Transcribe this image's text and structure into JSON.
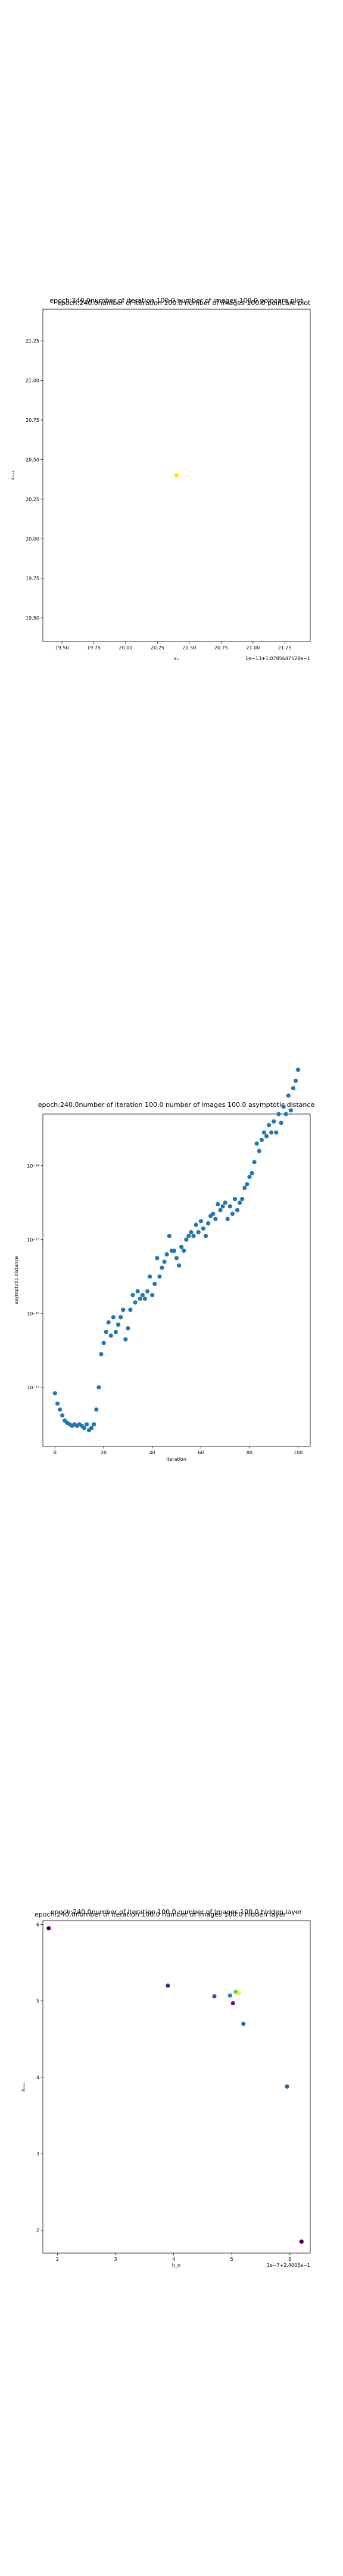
{
  "chart_data": [
    {
      "type": "scatter",
      "title": "epoch:240.0number of iteration 100.0 number of images 100.0 poincare plot",
      "overlay_title": "epoch:240.0number of iteration 100.0 number of images 100.0 poincare plot",
      "xlabel": "xₙ",
      "ylabel": "xₙ₊₁",
      "x_offset_text": "1e−13+1.0785647528e−1",
      "xlim": [
        19.35,
        21.45
      ],
      "ylim": [
        19.35,
        21.45
      ],
      "xticks": [
        "19.50",
        "19.75",
        "20.00",
        "20.25",
        "20.50",
        "20.75",
        "21.00",
        "21.25"
      ],
      "yticks": [
        "19.50",
        "19.75",
        "20.00",
        "20.25",
        "20.50",
        "20.75",
        "21.00",
        "21.25"
      ],
      "points": [
        {
          "x": 20.4,
          "y": 20.4,
          "color": "#fde725"
        }
      ]
    },
    {
      "type": "scatter",
      "title": "epoch:240.0number of iteration 100.0  number of images 100.0 asymptotic distance",
      "xlabel": "iteration",
      "ylabel": "asymptotic distance",
      "yscale": "log",
      "xlim": [
        -5,
        105
      ],
      "ylim_exp": [
        -17.8,
        -13.3
      ],
      "xticks": [
        "0",
        "20",
        "40",
        "60",
        "80",
        "100"
      ],
      "yticks": [
        "10⁻¹⁷",
        "10⁻¹⁶",
        "10⁻¹⁵",
        "10⁻¹⁴"
      ],
      "color": "#1f77b4",
      "x": [
        0,
        1,
        2,
        3,
        4,
        5,
        6,
        7,
        8,
        9,
        10,
        11,
        12,
        13,
        14,
        15,
        16,
        17,
        18,
        19,
        20,
        21,
        22,
        23,
        24,
        25,
        26,
        27,
        28,
        29,
        30,
        31,
        32,
        33,
        34,
        35,
        36,
        37,
        38,
        39,
        40,
        41,
        42,
        43,
        44,
        45,
        46,
        47,
        48,
        49,
        50,
        51,
        52,
        53,
        54,
        55,
        56,
        57,
        58,
        59,
        60,
        61,
        62,
        63,
        64,
        65,
        66,
        67,
        68,
        69,
        70,
        71,
        72,
        73,
        74,
        75,
        76,
        77,
        78,
        79,
        80,
        81,
        82,
        83,
        84,
        85,
        86,
        87,
        88,
        89,
        90,
        91,
        92,
        93,
        94,
        95,
        96,
        97,
        98,
        99,
        100
      ],
      "y_log10": [
        -17.08,
        -17.22,
        -17.3,
        -17.38,
        -17.45,
        -17.48,
        -17.5,
        -17.52,
        -17.5,
        -17.52,
        -17.5,
        -17.52,
        -17.55,
        -17.5,
        -17.58,
        -17.55,
        -17.5,
        -17.3,
        -17.0,
        -16.55,
        -16.4,
        -16.25,
        -16.12,
        -16.3,
        -16.05,
        -16.25,
        -16.15,
        -16.05,
        -15.95,
        -16.35,
        -16.2,
        -15.95,
        -15.75,
        -15.85,
        -15.7,
        -15.8,
        -15.75,
        -15.8,
        -15.7,
        -15.5,
        -15.75,
        -15.6,
        -15.25,
        -15.5,
        -15.38,
        -15.3,
        -15.2,
        -14.95,
        -15.15,
        -15.15,
        -15.25,
        -15.35,
        -15.1,
        -15.15,
        -15.0,
        -14.95,
        -14.9,
        -14.95,
        -14.8,
        -14.9,
        -14.75,
        -14.85,
        -14.95,
        -14.78,
        -14.68,
        -14.65,
        -14.72,
        -14.52,
        -14.6,
        -14.55,
        -14.5,
        -14.72,
        -14.55,
        -14.65,
        -14.45,
        -14.6,
        -14.5,
        -14.45,
        -14.3,
        -14.25,
        -14.15,
        -14.1,
        -13.95,
        -13.7,
        -13.8,
        -13.65,
        -13.55,
        -13.6,
        -13.45,
        -13.55,
        -13.4,
        -13.55,
        -13.3,
        -13.42,
        -13.2,
        -13.3,
        -13.05,
        -13.25,
        -12.95,
        -12.85,
        -12.7
      ]
    },
    {
      "type": "scatter",
      "title": "epoch:240.0number of iteration 100.0  number of images 100.0 hidden layer",
      "overlay_title": "epoch:240.0number of iteration 100.0  number of images 100.0 hidden layer",
      "xlabel": "h_n",
      "ylabel": "hₙ₊₁",
      "x_offset_text": "1e−7+2.4005e−1",
      "xlim": [
        1.75,
        6.35
      ],
      "ylim": [
        1.7,
        6.05
      ],
      "xticks": [
        "2",
        "3",
        "4",
        "5",
        "6"
      ],
      "yticks": [
        "2",
        "3",
        "4",
        "5",
        "6"
      ],
      "points": [
        {
          "x": 1.85,
          "y": 5.95,
          "color": "#440154"
        },
        {
          "x": 3.9,
          "y": 5.2,
          "color": "#472c7a"
        },
        {
          "x": 4.7,
          "y": 5.06,
          "color": "#3b528b"
        },
        {
          "x": 4.97,
          "y": 5.07,
          "color": "#21908d"
        },
        {
          "x": 5.07,
          "y": 5.12,
          "color": "#5ec962"
        },
        {
          "x": 5.12,
          "y": 5.1,
          "color": "#fde725"
        },
        {
          "x": 5.02,
          "y": 4.97,
          "color": "#7e03a8"
        },
        {
          "x": 5.2,
          "y": 4.7,
          "color": "#2c728e"
        },
        {
          "x": 5.95,
          "y": 3.88,
          "color": "#31688e"
        },
        {
          "x": 6.2,
          "y": 1.85,
          "color": "#440154"
        }
      ]
    }
  ]
}
